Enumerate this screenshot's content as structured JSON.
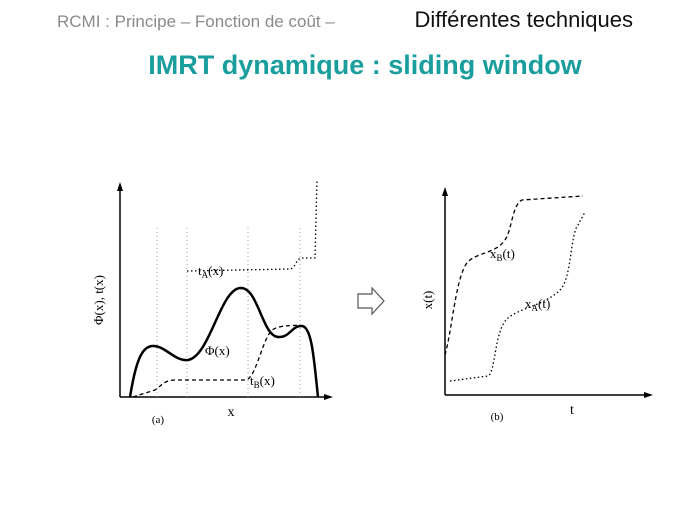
{
  "header": {
    "breadcrumb": "RCMI : Principe – Fonction de coût –",
    "section": "Différentes techniques"
  },
  "title": "IMRT dynamique : sliding window",
  "figure_a": {
    "y_axis": "Φ(x), t(x)",
    "x_axis": "x",
    "caption": "(a)",
    "labels": [
      {
        "base": "t",
        "sub": "A",
        "arg": "(x)"
      },
      {
        "base": "Φ(x)"
      },
      {
        "base": "t",
        "sub": "B",
        "arg": "(x)"
      }
    ]
  },
  "figure_b": {
    "y_axis": "x(t)",
    "x_axis": "t",
    "caption": "(b)",
    "labels": [
      {
        "base": "x",
        "sub": "B",
        "arg": "(t)"
      },
      {
        "base": "x",
        "sub": "A",
        "arg": "(t)"
      }
    ]
  }
}
